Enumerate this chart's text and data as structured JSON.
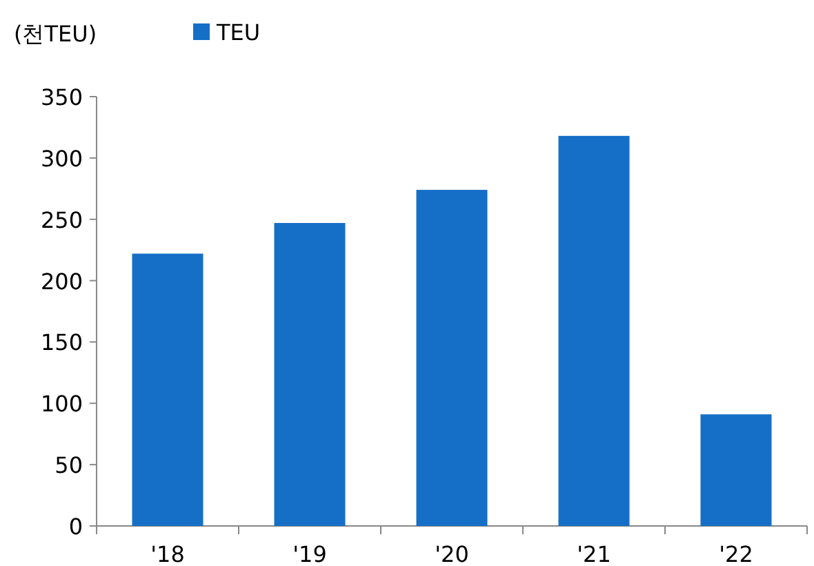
{
  "chart_data": {
    "type": "bar",
    "ylabel": "(천TEU)",
    "categories": [
      "'18",
      "'19",
      "'20",
      "'21",
      "'22"
    ],
    "series": [
      {
        "name": "TEU",
        "color": "#166fc6",
        "values": [
          222,
          247,
          274,
          318,
          91
        ]
      }
    ],
    "ylim": [
      0,
      350
    ],
    "yticks": [
      0,
      50,
      100,
      150,
      200,
      250,
      300,
      350
    ],
    "grid": false,
    "legend": "top"
  }
}
